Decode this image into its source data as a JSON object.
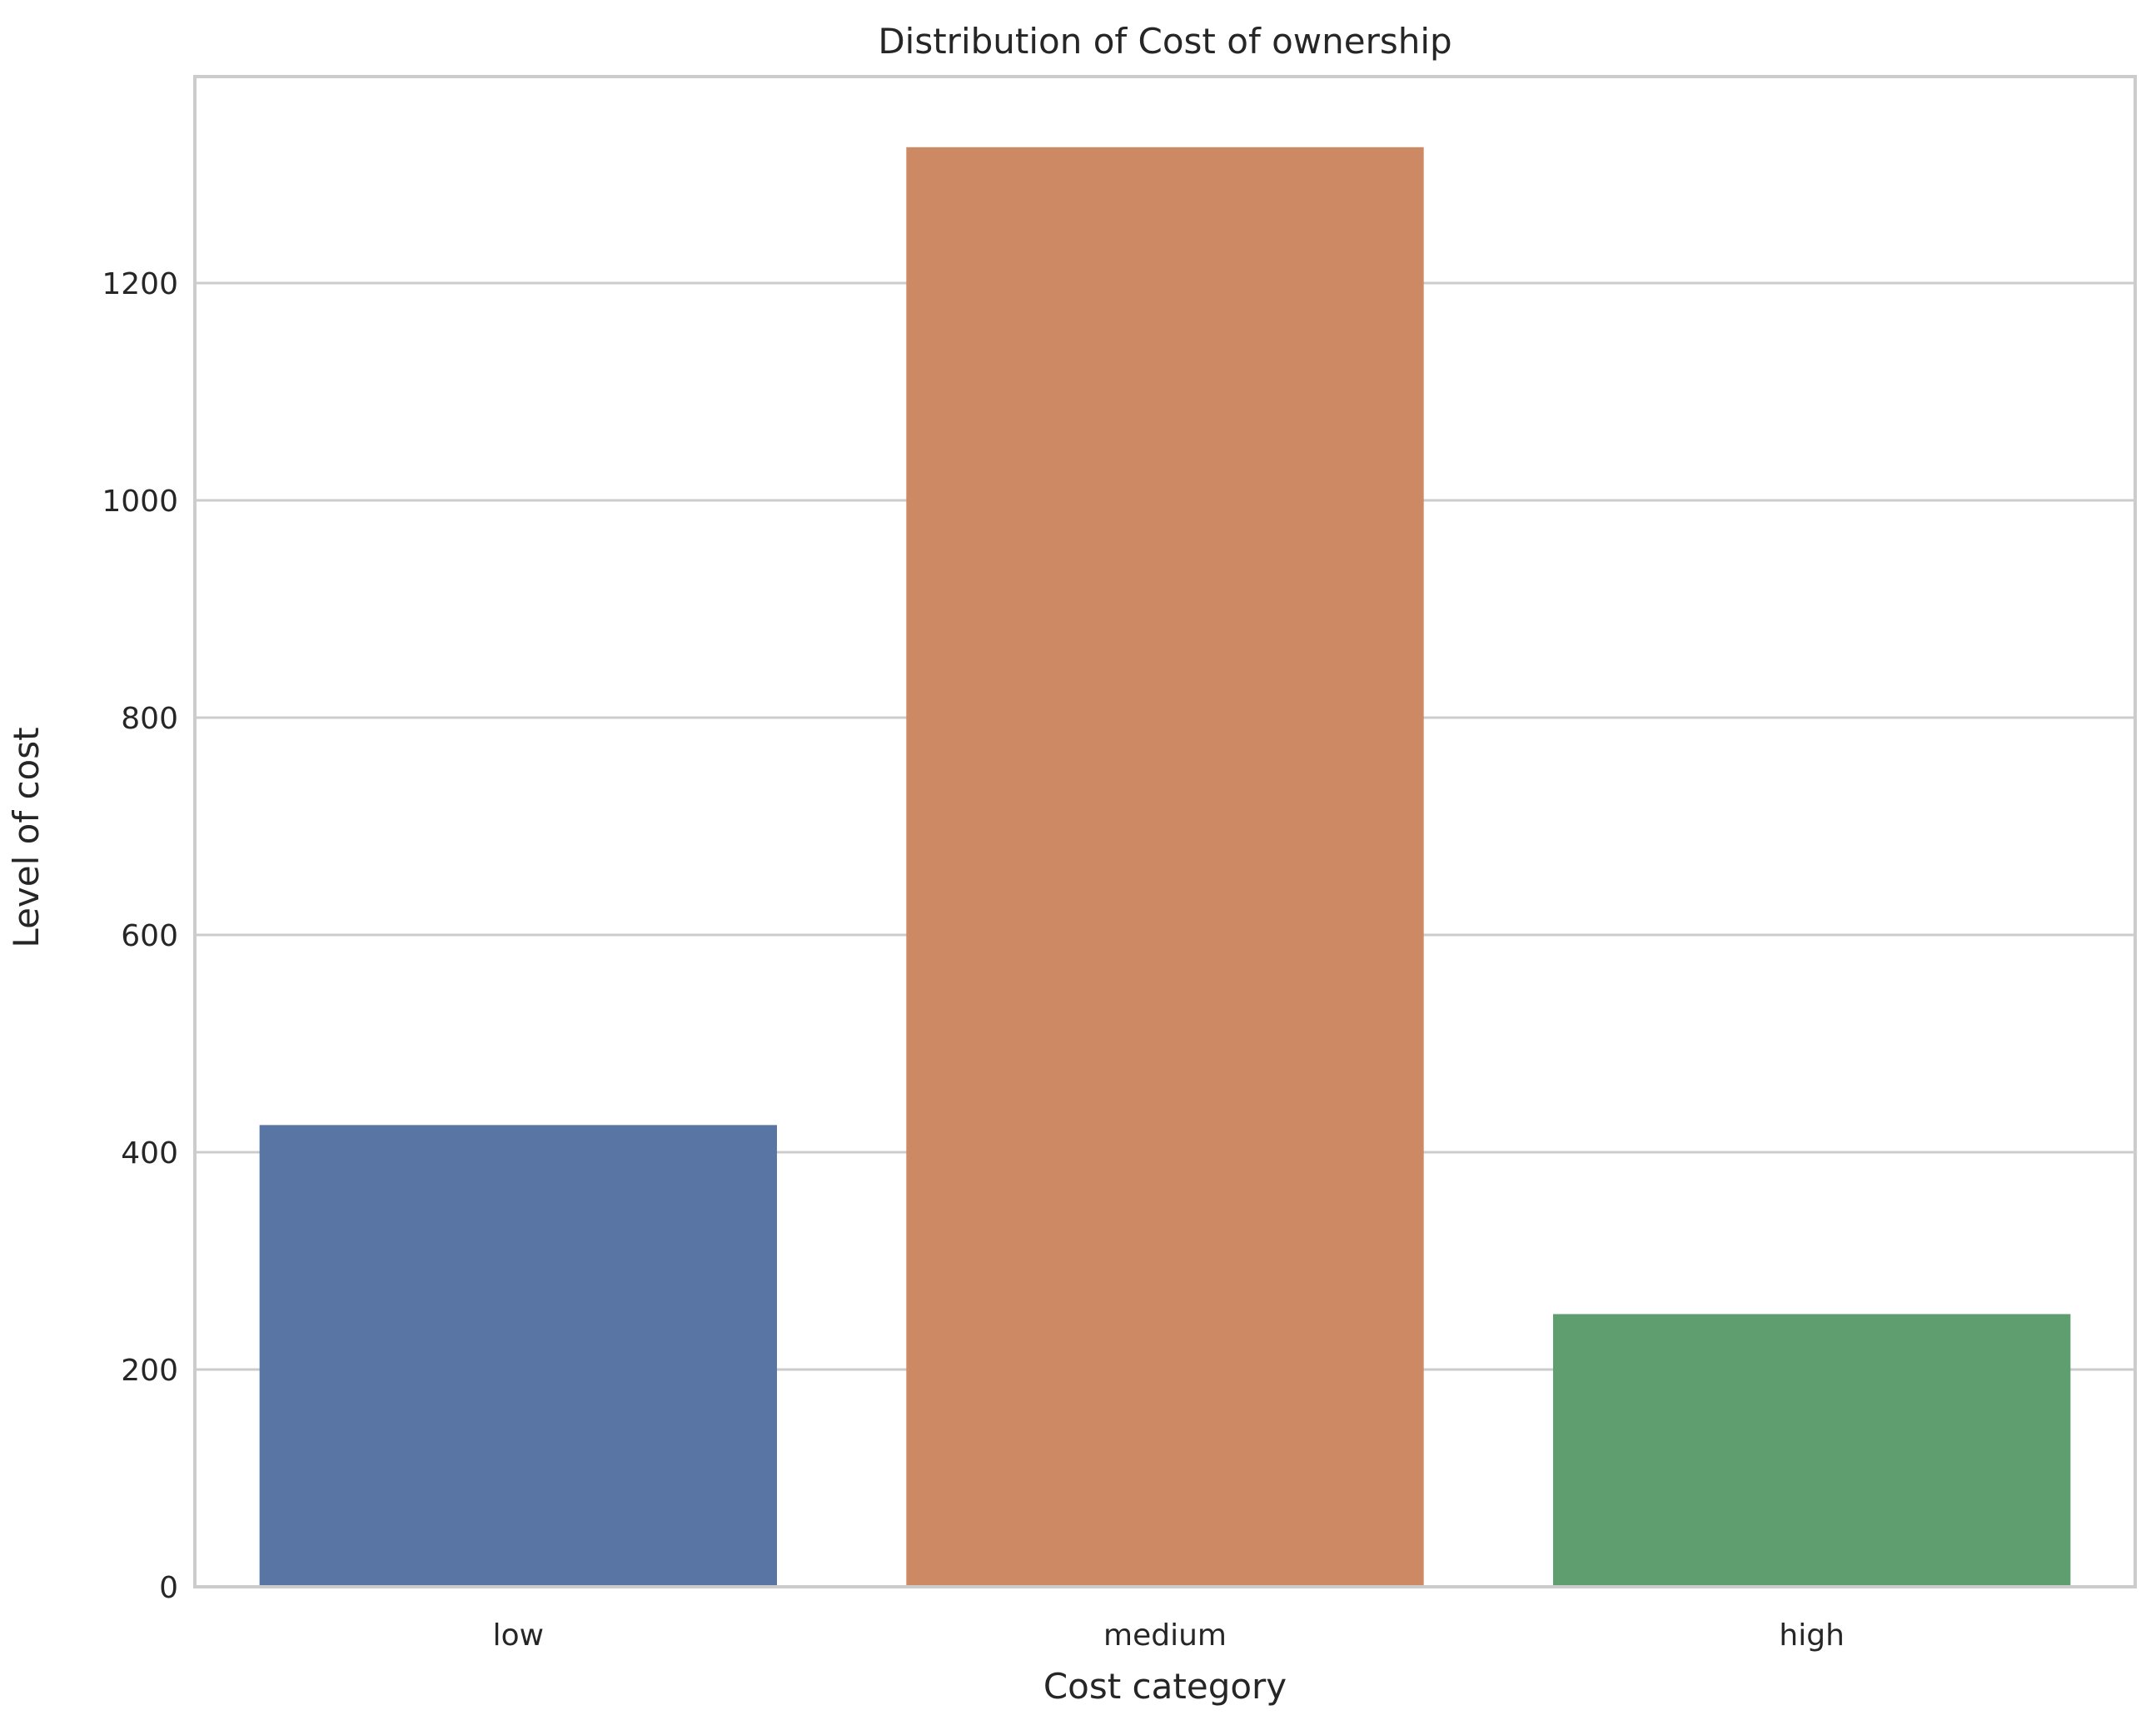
{
  "chart_data": {
    "type": "bar",
    "title": "Distribution of Cost of ownership",
    "xlabel": "Cost category",
    "ylabel": "Level of cost",
    "categories": [
      "low",
      "medium",
      "high"
    ],
    "values": [
      425,
      1325,
      251
    ],
    "ylim": [
      0,
      1390
    ],
    "yticks": [
      0,
      200,
      400,
      600,
      800,
      1000,
      1200
    ],
    "grid": "horizontal",
    "colors": {
      "bars": [
        "#5875a4",
        "#cc8963",
        "#5f9e6e"
      ],
      "grid": "#cccccc",
      "spine": "#cccccc",
      "text": "#262626",
      "background": "#ffffff"
    }
  }
}
